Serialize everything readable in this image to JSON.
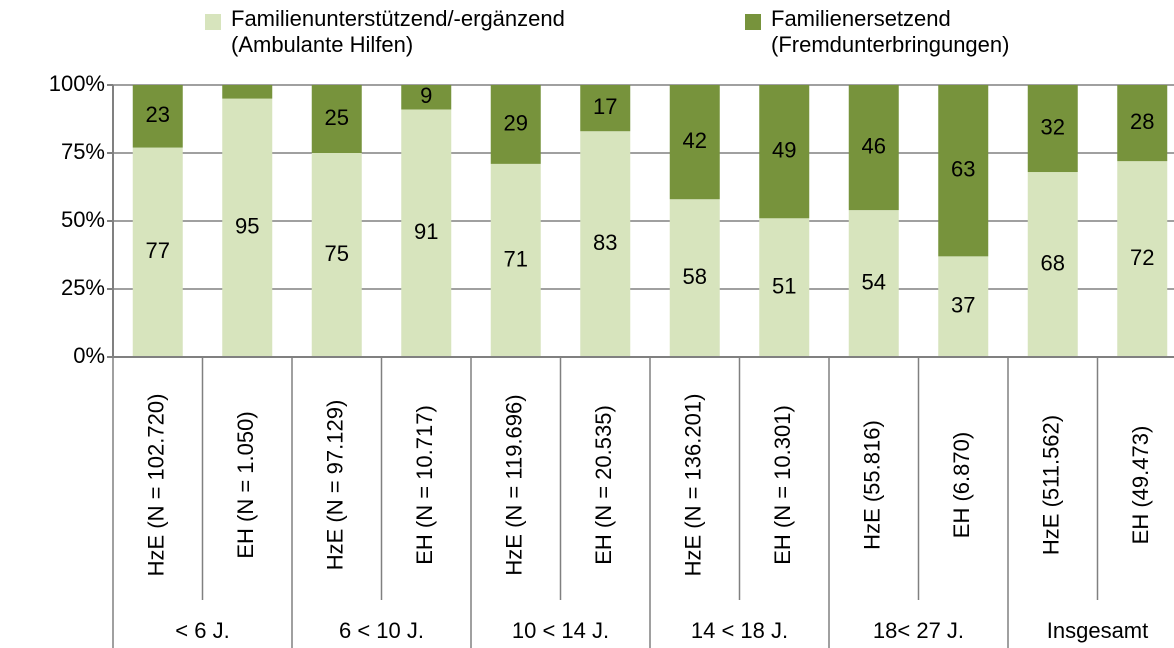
{
  "chart_data": {
    "type": "stacked_bar",
    "categories": [
      "HzE (N = 102.720)",
      "EH (N = 1.050)",
      "HzE (N = 97.129)",
      "EH (N = 10.717)",
      "HzE (N = 119.696)",
      "EH (N = 20.535)",
      "HzE (N = 136.201)",
      "EH (N = 10.301)",
      "HzE (55.816)",
      "EH (6.870)",
      "HzE (511.562)",
      "EH (49.473)"
    ],
    "groups": [
      "< 6 J.",
      "6 < 10 J.",
      "10 < 14 J.",
      "14 < 18 J.",
      "18< 27 J.",
      "Insgesamt"
    ],
    "series": [
      {
        "name": "Familienunterstützend/-ergänzend\n(Ambulante Hilfen)",
        "color": "#d7e4bd",
        "values": [
          77,
          95,
          75,
          91,
          71,
          83,
          58,
          51,
          54,
          37,
          68,
          72
        ]
      },
      {
        "name": "Familienersetzend\n(Fremdunterbringungen)",
        "color": "#77933c",
        "values": [
          23,
          5,
          25,
          9,
          29,
          17,
          42,
          49,
          46,
          63,
          32,
          28
        ],
        "value_labels": [
          "23",
          null,
          "25",
          "9",
          "29",
          "17",
          "42",
          "49",
          "46",
          "63",
          "32",
          "28"
        ]
      }
    ],
    "ylim": [
      0,
      100
    ],
    "yticks": [
      {
        "value": 0,
        "label": "0%"
      },
      {
        "value": 25,
        "label": "25%"
      },
      {
        "value": 50,
        "label": "50%"
      },
      {
        "value": 75,
        "label": "75%"
      },
      {
        "value": 100,
        "label": "100%"
      }
    ],
    "grid": true
  }
}
